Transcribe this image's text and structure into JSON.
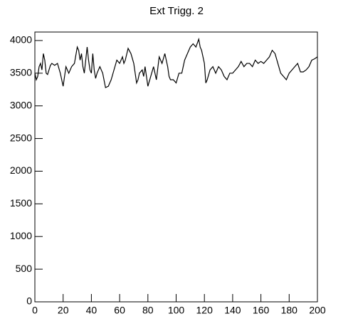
{
  "chart_data": {
    "type": "line",
    "title": "Ext Trigg. 2",
    "x": [
      0,
      1,
      2,
      3,
      4,
      5,
      6,
      7,
      8,
      9,
      10,
      11,
      12,
      14,
      16,
      18,
      19,
      20,
      21,
      22,
      24,
      26,
      28,
      30,
      31,
      32,
      33,
      34,
      35,
      36,
      37,
      38,
      39,
      40,
      41,
      42,
      43,
      44,
      46,
      48,
      50,
      52,
      54,
      56,
      58,
      60,
      62,
      63,
      64,
      66,
      68,
      70,
      71,
      72,
      73,
      74,
      76,
      77,
      78,
      80,
      82,
      84,
      85,
      86,
      88,
      90,
      92,
      94,
      95,
      96,
      98,
      100,
      102,
      104,
      106,
      108,
      110,
      112,
      114,
      116,
      117,
      118,
      120,
      121,
      122,
      124,
      126,
      128,
      130,
      132,
      134,
      136,
      138,
      140,
      142,
      144,
      146,
      148,
      150,
      152,
      154,
      156,
      158,
      160,
      162,
      164,
      166,
      168,
      170,
      172,
      174,
      176,
      178,
      180,
      182,
      184,
      186,
      188,
      190,
      192,
      194,
      196,
      198,
      200
    ],
    "series": [
      {
        "name": "Ext Trigg. 2",
        "color": "#000000",
        "values": [
          3500,
          3400,
          3450,
          3600,
          3650,
          3550,
          3800,
          3700,
          3500,
          3480,
          3550,
          3620,
          3650,
          3620,
          3650,
          3500,
          3400,
          3300,
          3450,
          3600,
          3500,
          3600,
          3650,
          3900,
          3850,
          3700,
          3800,
          3600,
          3500,
          3700,
          3900,
          3700,
          3550,
          3500,
          3800,
          3550,
          3420,
          3500,
          3600,
          3500,
          3280,
          3300,
          3400,
          3550,
          3700,
          3650,
          3750,
          3650,
          3700,
          3880,
          3800,
          3650,
          3500,
          3350,
          3400,
          3500,
          3550,
          3450,
          3600,
          3300,
          3450,
          3600,
          3500,
          3400,
          3750,
          3650,
          3800,
          3600,
          3450,
          3400,
          3400,
          3350,
          3500,
          3500,
          3700,
          3800,
          3900,
          3950,
          3900,
          4020,
          3900,
          3850,
          3650,
          3350,
          3400,
          3550,
          3600,
          3500,
          3600,
          3550,
          3450,
          3400,
          3500,
          3500,
          3550,
          3600,
          3680,
          3600,
          3650,
          3650,
          3600,
          3700,
          3650,
          3680,
          3650,
          3700,
          3750,
          3850,
          3800,
          3650,
          3500,
          3450,
          3400,
          3500,
          3550,
          3600,
          3650,
          3520,
          3520,
          3550,
          3600,
          3700,
          3720,
          3750
        ]
      }
    ],
    "xlim": [
      0,
      200
    ],
    "ylim": [
      0,
      4130
    ],
    "xticks": [
      0,
      20,
      40,
      60,
      80,
      100,
      120,
      140,
      160,
      180,
      200
    ],
    "yticks": [
      0,
      500,
      1000,
      1500,
      2000,
      2500,
      3000,
      3500,
      4000
    ]
  }
}
